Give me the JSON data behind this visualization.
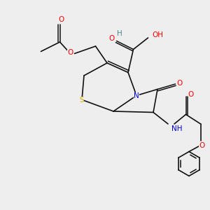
{
  "bg_color": "#eeeeee",
  "atom_colors": {
    "O": "#ff0000",
    "N": "#0000cc",
    "S": "#ccaa00",
    "H": "#4a8888",
    "C": "#111111"
  },
  "bond_color": "#111111",
  "font_size": 7.5,
  "figsize": [
    3.0,
    3.0
  ],
  "dpi": 100
}
